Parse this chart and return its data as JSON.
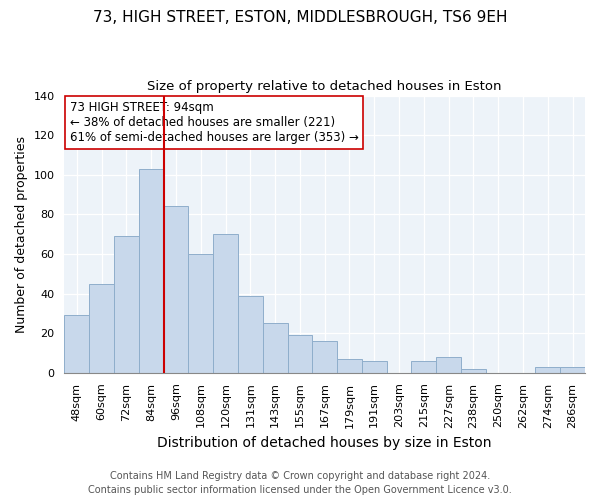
{
  "title": "73, HIGH STREET, ESTON, MIDDLESBROUGH, TS6 9EH",
  "subtitle": "Size of property relative to detached houses in Eston",
  "xlabel": "Distribution of detached houses by size in Eston",
  "ylabel": "Number of detached properties",
  "bar_color": "#c8d8eb",
  "bar_edge_color": "#8faecb",
  "grid_color": "#c8d8eb",
  "plot_bg_color": "#edf3f9",
  "categories": [
    "48sqm",
    "60sqm",
    "72sqm",
    "84sqm",
    "96sqm",
    "108sqm",
    "120sqm",
    "131sqm",
    "143sqm",
    "155sqm",
    "167sqm",
    "179sqm",
    "191sqm",
    "203sqm",
    "215sqm",
    "227sqm",
    "238sqm",
    "250sqm",
    "262sqm",
    "274sqm",
    "286sqm"
  ],
  "values": [
    29,
    45,
    69,
    103,
    84,
    60,
    70,
    39,
    25,
    19,
    16,
    7,
    6,
    0,
    6,
    8,
    2,
    0,
    0,
    3,
    3
  ],
  "vline_x_idx": 4,
  "vline_color": "#cc0000",
  "annotation_text": "73 HIGH STREET: 94sqm\n← 38% of detached houses are smaller (221)\n61% of semi-detached houses are larger (353) →",
  "annotation_box_color": "#ffffff",
  "annotation_box_edge": "#cc0000",
  "ylim": [
    0,
    140
  ],
  "footer1": "Contains HM Land Registry data © Crown copyright and database right 2024.",
  "footer2": "Contains public sector information licensed under the Open Government Licence v3.0.",
  "title_fontsize": 11,
  "subtitle_fontsize": 9.5,
  "annotation_fontsize": 8.5,
  "ylabel_fontsize": 9,
  "xlabel_fontsize": 10,
  "footer_fontsize": 7,
  "tick_fontsize": 8
}
